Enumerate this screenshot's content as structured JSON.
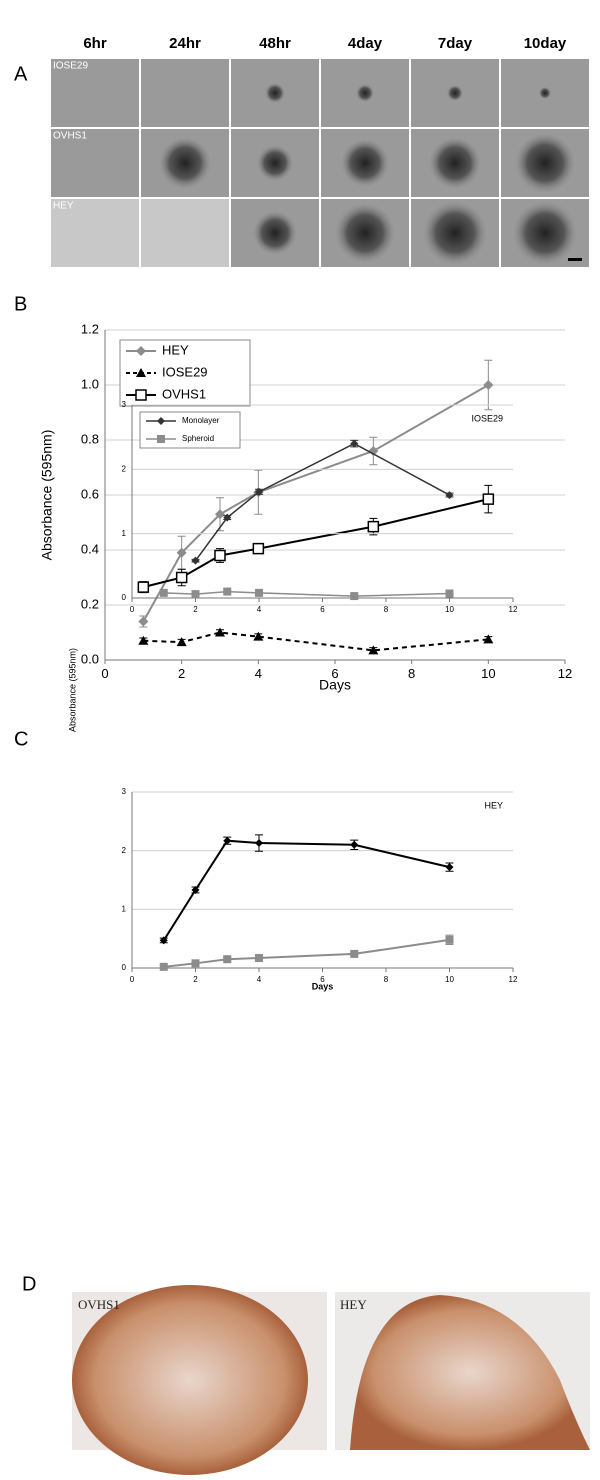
{
  "panel_labels": [
    "A",
    "B",
    "C",
    "D"
  ],
  "micrographs": {
    "columns": [
      "6hr",
      "24hr",
      "48hr",
      "4day",
      "7day",
      "10day"
    ],
    "rows": [
      "IOSE29",
      "OVHS1",
      "HEY"
    ]
  },
  "staining": {
    "labels": [
      "OVHS1",
      "HEY"
    ]
  },
  "chart_data": [
    {
      "type": "line",
      "x_label": "Days",
      "y_label": "Absorbance (595nm)",
      "xlim": [
        0,
        12
      ],
      "xticks": [
        0,
        2,
        4,
        6,
        8,
        10,
        12
      ],
      "ylim": [
        0,
        1.2
      ],
      "yticks": [
        {
          "value": 0,
          "label": "0.0"
        },
        0.2,
        0.4,
        0.6,
        0.8,
        {
          "value": 1,
          "label": "1.0"
        },
        1.2
      ],
      "grid": true,
      "legend": "upper left",
      "series": [
        {
          "name": "HEY",
          "color": "#8c8c8c",
          "marker": "diamond",
          "dash": false,
          "x": [
            1,
            2,
            3,
            4,
            7,
            10
          ],
          "values": [
            0.14,
            0.39,
            0.53,
            0.61,
            0.76,
            1.0
          ],
          "errors": [
            0.02,
            0.06,
            0.06,
            0.08,
            0.05,
            0.09
          ]
        },
        {
          "name": "IOSE29",
          "color": "#000000",
          "marker": "triangle",
          "dash": true,
          "x": [
            1,
            2,
            3,
            4,
            7,
            10
          ],
          "values": [
            0.07,
            0.065,
            0.1,
            0.085,
            0.035,
            0.075
          ],
          "errors": [
            0.01,
            0.01,
            0.01,
            0.01,
            0.01,
            0.01
          ]
        },
        {
          "name": "OVHS1",
          "color": "#000000",
          "marker": "open-square",
          "dash": false,
          "x": [
            1,
            2,
            3,
            4,
            7,
            10
          ],
          "values": [
            0.265,
            0.3,
            0.38,
            0.405,
            0.485,
            0.585
          ],
          "errors": [
            0.02,
            0.03,
            0.025,
            0.015,
            0.03,
            0.05
          ]
        }
      ]
    },
    {
      "type": "line",
      "annotation": "IOSE29",
      "y_label": "Absorbance (595nm)",
      "xlim": [
        0,
        12
      ],
      "xticks": [
        0,
        2,
        4,
        6,
        8,
        10,
        12
      ],
      "ylim": [
        0,
        3
      ],
      "yticks": [
        0,
        1,
        2,
        3
      ],
      "grid": true,
      "legend": "upper left",
      "series": [
        {
          "name": "Monolayer",
          "color": "#333333",
          "marker": "diamond",
          "dash": false,
          "x": [
            2,
            3,
            4,
            7,
            10
          ],
          "values": [
            0.58,
            1.25,
            1.65,
            2.4,
            1.6
          ],
          "errors": [
            0.02,
            0.03,
            0.04,
            0.05,
            0.03
          ]
        },
        {
          "name": "Spheroid",
          "color": "#8c8c8c",
          "marker": "square",
          "dash": false,
          "x": [
            1,
            2,
            3,
            4,
            7,
            10
          ],
          "values": [
            0.08,
            0.06,
            0.1,
            0.08,
            0.03,
            0.07
          ],
          "errors": [
            0.01,
            0.01,
            0.01,
            0.01,
            0.01,
            0.01
          ]
        }
      ]
    },
    {
      "type": "line",
      "annotation": "HEY",
      "x_label": "Days",
      "xlim": [
        0,
        12
      ],
      "xticks": [
        0,
        2,
        4,
        6,
        8,
        10,
        12
      ],
      "ylim": [
        0,
        3
      ],
      "yticks": [
        0,
        1,
        2,
        3
      ],
      "grid": true,
      "series": [
        {
          "name": "Monolayer",
          "color": "#000000",
          "marker": "diamond",
          "dash": false,
          "x": [
            1,
            2,
            3,
            4,
            7,
            10
          ],
          "values": [
            0.47,
            1.33,
            2.17,
            2.13,
            2.1,
            1.72
          ],
          "errors": [
            0.04,
            0.05,
            0.06,
            0.14,
            0.08,
            0.07
          ]
        },
        {
          "name": "Spheroid",
          "color": "#8c8c8c",
          "marker": "square",
          "dash": false,
          "x": [
            1,
            2,
            3,
            4,
            7,
            10
          ],
          "values": [
            0.02,
            0.08,
            0.15,
            0.17,
            0.24,
            0.48
          ],
          "errors": [
            0.02,
            0.02,
            0.03,
            0.03,
            0.03,
            0.08
          ]
        }
      ]
    }
  ]
}
